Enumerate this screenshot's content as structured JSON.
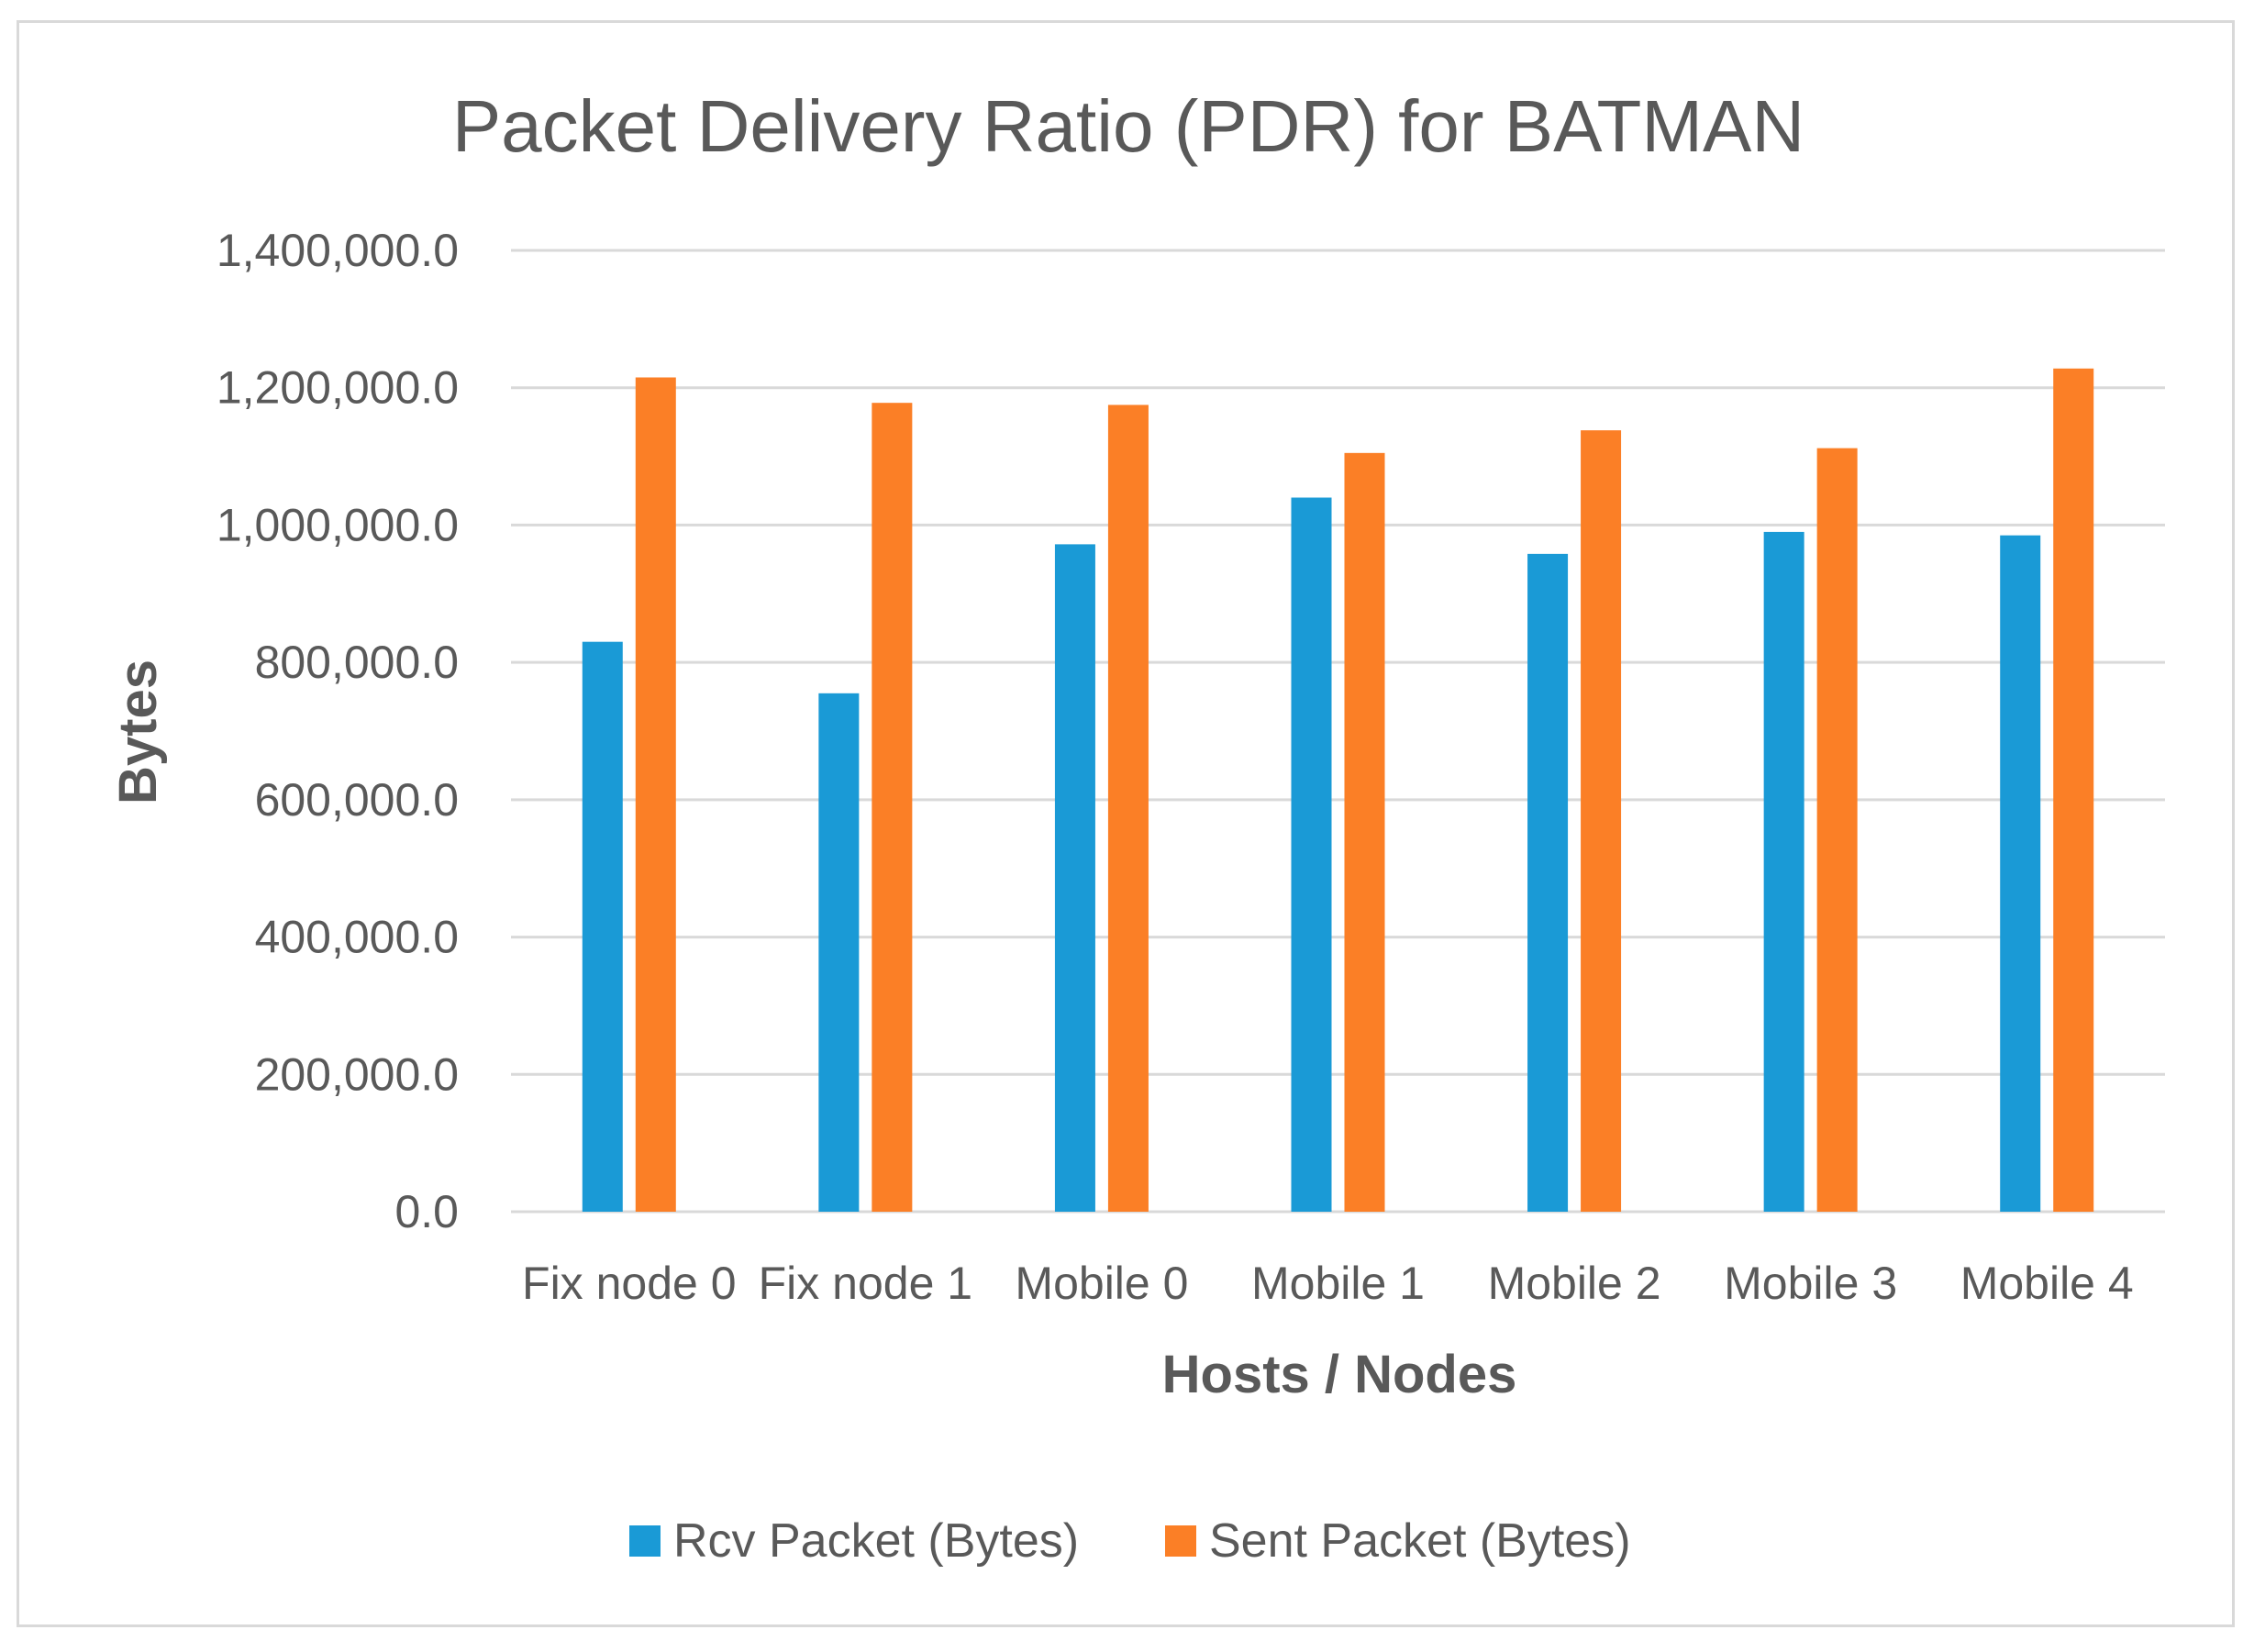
{
  "chart_data": {
    "type": "bar",
    "title": "Packet Delivery Ratio (PDR) for BATMAN",
    "xlabel": "Hosts / Nodes",
    "ylabel": "Bytes",
    "categories": [
      "Fix node 0",
      "Fix node 1",
      "Mobile 0",
      "Mobile 1",
      "Mobile 2",
      "Mobile 3",
      "Mobile 4"
    ],
    "series": [
      {
        "name": "Rcv Packet (Bytes)",
        "color": "#1a9ad6",
        "values": [
          830000,
          755000,
          972000,
          1040000,
          958000,
          990000,
          985000
        ]
      },
      {
        "name": "Sent Packet (Bytes)",
        "color": "#fb7f26",
        "values": [
          1215000,
          1178000,
          1175000,
          1105000,
          1138000,
          1112000,
          1228000
        ]
      }
    ],
    "ylim": [
      0,
      1400000
    ],
    "yticks": [
      0,
      200000,
      400000,
      600000,
      800000,
      1000000,
      1200000,
      1400000
    ],
    "ytick_labels": [
      "0.0",
      "200,000.0",
      "400,000.0",
      "600,000.0",
      "800,000.0",
      "1,000,000.0",
      "1,200,000.0",
      "1,400,000.0"
    ],
    "grid": true,
    "gridline_color": "#d9d9d9",
    "legend_position": "bottom"
  }
}
